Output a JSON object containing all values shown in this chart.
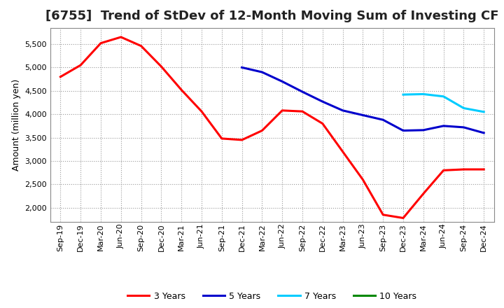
{
  "title": "[6755]  Trend of StDev of 12-Month Moving Sum of Investing CF",
  "ylabel": "Amount (million yen)",
  "background_color": "#ffffff",
  "plot_bg_color": "#ffffff",
  "grid_color": "#999999",
  "xlim_start": "Sep-19",
  "xlim_end": "Dec-24",
  "ylim": [
    1700,
    5850
  ],
  "yticks": [
    2000,
    2500,
    3000,
    3500,
    4000,
    4500,
    5000,
    5500
  ],
  "x_labels": [
    "Sep-19",
    "Dec-19",
    "Mar-20",
    "Jun-20",
    "Sep-20",
    "Dec-20",
    "Mar-21",
    "Jun-21",
    "Sep-21",
    "Dec-21",
    "Mar-22",
    "Jun-22",
    "Sep-22",
    "Dec-22",
    "Mar-23",
    "Jun-23",
    "Sep-23",
    "Dec-23",
    "Mar-24",
    "Jun-24",
    "Sep-24",
    "Dec-24"
  ],
  "series_3y": {
    "label": "3 Years",
    "color": "#ff0000",
    "x": [
      "Sep-19",
      "Dec-19",
      "Mar-20",
      "Jun-20",
      "Sep-20",
      "Dec-20",
      "Mar-21",
      "Jun-21",
      "Sep-21",
      "Dec-21",
      "Mar-22",
      "Jun-22",
      "Sep-22",
      "Dec-22",
      "Mar-23",
      "Jun-23",
      "Sep-23",
      "Dec-23",
      "Mar-24",
      "Jun-24",
      "Sep-24",
      "Dec-24"
    ],
    "y": [
      4800,
      5050,
      5520,
      5650,
      5460,
      5020,
      4520,
      4060,
      3480,
      3450,
      3650,
      4080,
      4060,
      3800,
      3200,
      2600,
      1850,
      1780,
      2300,
      2800,
      2820,
      2820
    ]
  },
  "series_5y": {
    "label": "5 Years",
    "color": "#0000cc",
    "x": [
      "Dec-21",
      "Mar-22",
      "Jun-22",
      "Sep-22",
      "Dec-22",
      "Mar-23",
      "Jun-23",
      "Sep-23",
      "Dec-23",
      "Mar-24",
      "Jun-24",
      "Sep-24",
      "Dec-24"
    ],
    "y": [
      5000,
      4900,
      4700,
      4480,
      4270,
      4080,
      3980,
      3880,
      3650,
      3660,
      3750,
      3720,
      3600
    ]
  },
  "series_7y": {
    "label": "7 Years",
    "color": "#00ccff",
    "x": [
      "Dec-23",
      "Mar-24",
      "Jun-24",
      "Sep-24",
      "Dec-24"
    ],
    "y": [
      4420,
      4430,
      4380,
      4130,
      4050
    ]
  },
  "series_10y": {
    "label": "10 Years",
    "color": "#008800",
    "x": [],
    "y": []
  },
  "linewidth": 2.2,
  "title_fontsize": 13,
  "label_fontsize": 9,
  "tick_fontsize": 8,
  "legend_fontsize": 9
}
